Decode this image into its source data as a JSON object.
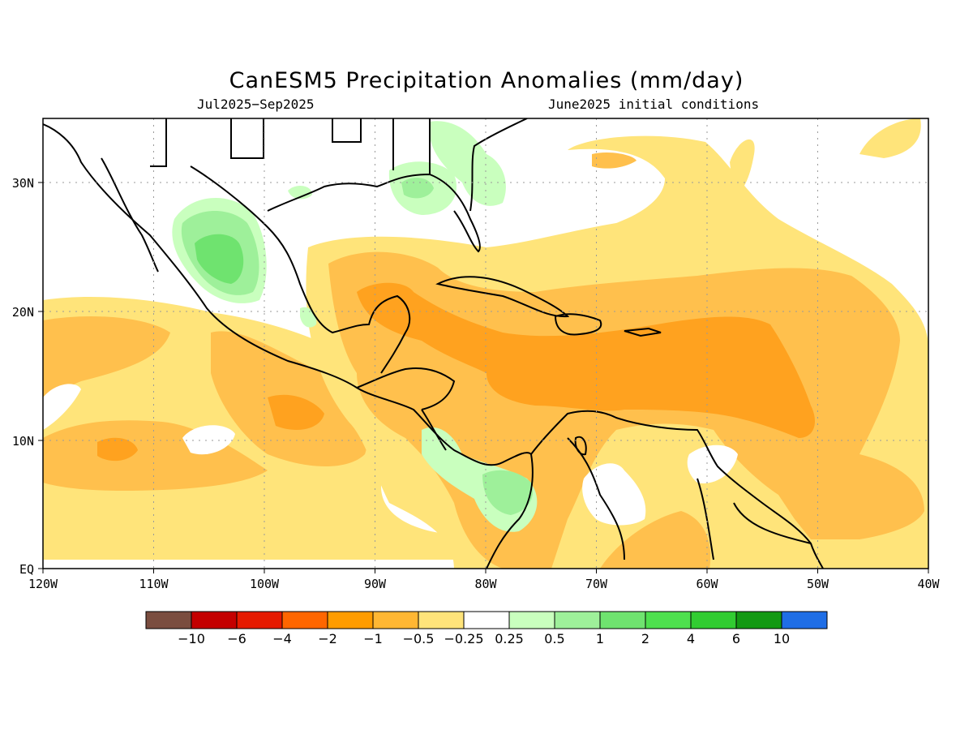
{
  "title": "CanESM5 Precipitation Anomalies (mm/day)",
  "subtitle_left": "Jul2025−Sep2025",
  "subtitle_right": "June2025 initial conditions",
  "lon_labels": [
    "120W",
    "110W",
    "100W",
    "90W",
    "80W",
    "70W",
    "60W",
    "50W",
    "40W"
  ],
  "lat_labels": [
    "EQ",
    "10N",
    "20N",
    "30N"
  ],
  "extent": {
    "lon_min": -120,
    "lon_max": -40,
    "lat_min": 0,
    "lat_max": 35
  },
  "colorbar": {
    "colors": [
      "#7a4d3f",
      "#c40000",
      "#e61a00",
      "#ff6600",
      "#ff9c00",
      "#ffb733",
      "#ffe47a",
      "#ffffff",
      "#c9ffbe",
      "#9ef09a",
      "#6fe36f",
      "#4ee04e",
      "#31cc31",
      "#139913",
      "#1f6ee6"
    ],
    "labels": [
      "−10",
      "−6",
      "−4",
      "−2",
      "−1",
      "−0.5",
      "−0.25",
      "0.25",
      "0.5",
      "1",
      "2",
      "4",
      "6",
      "10"
    ]
  },
  "colors": {
    "light_yellow": "#ffe47a",
    "light_orange": "#ffc04d",
    "orange": "#ffa21f",
    "light_green": "#c9ffbe",
    "green": "#9ef09a",
    "mid_green": "#6fe36f"
  }
}
